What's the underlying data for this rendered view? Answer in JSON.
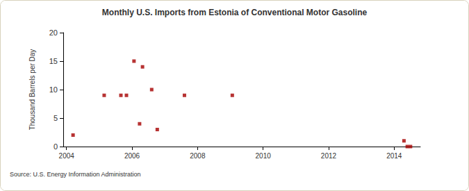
{
  "chart_data": {
    "type": "scatter",
    "title": "Monthly U.S. Imports from Estonia of Conventional Motor Gasoline",
    "source": "Source: U.S. Energy Information Administration",
    "y_label": "Thousand Barrels per Day",
    "x": [
      2004.2,
      2005.15,
      2005.66,
      2005.83,
      2006.06,
      2006.23,
      2006.32,
      2006.6,
      2006.77,
      2007.6,
      2009.06,
      2014.3,
      2014.4,
      2014.5
    ],
    "values": [
      2,
      9,
      9,
      9,
      15,
      4,
      14,
      10,
      3,
      9,
      9,
      1,
      0,
      0
    ],
    "color": "#a50000",
    "marker": "square",
    "xlim": [
      2003.9,
      2014.8
    ],
    "xticks": [
      2004,
      2006,
      2008,
      2010,
      2012,
      2014
    ],
    "ylim": [
      0,
      20
    ],
    "yticks": [
      0,
      5,
      10,
      15,
      20
    ],
    "grid": false
  }
}
